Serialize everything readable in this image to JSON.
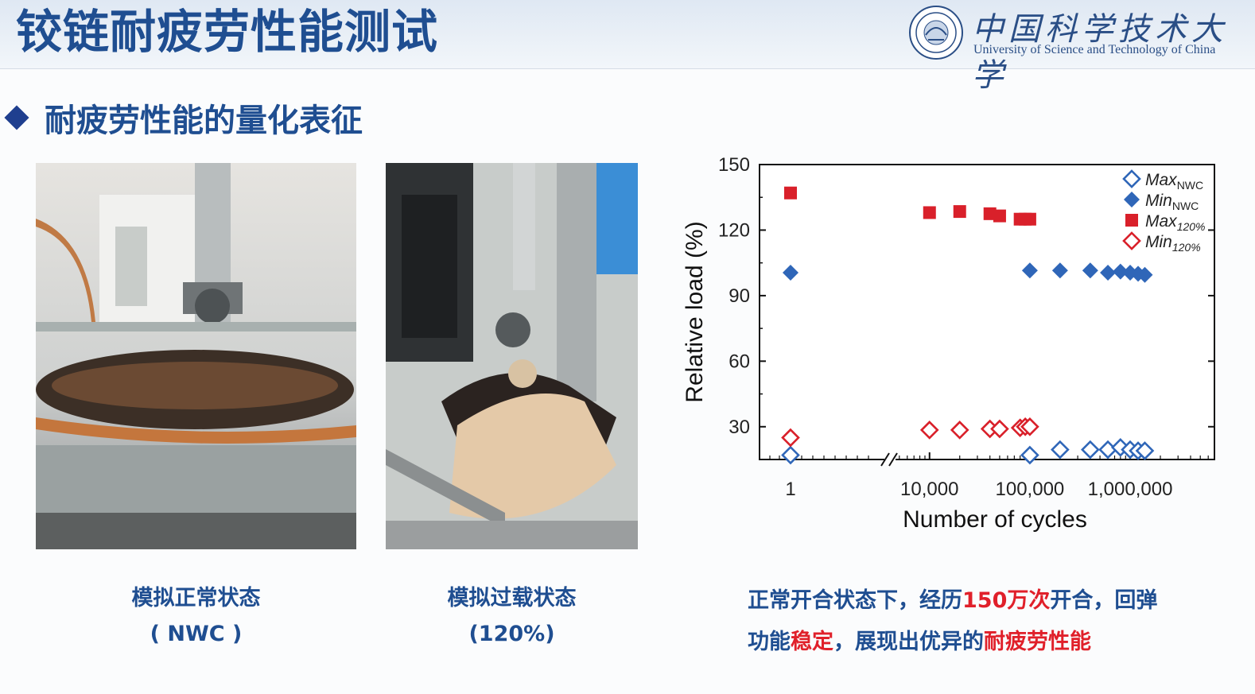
{
  "header": {
    "title": "铰链耐疲劳性能测试",
    "university_cn": "中国科学技术大学",
    "university_en": "University of Science and Technology of China"
  },
  "section": {
    "title": "耐疲劳性能的量化表征"
  },
  "photos": [
    {
      "caption_line1": "模拟正常状态",
      "caption_line2": "( NWC )"
    },
    {
      "caption_line1": "模拟过载状态",
      "caption_line2": "(120%)"
    }
  ],
  "description": {
    "p1": "正常开合状态下，经历",
    "hl1": "150万次",
    "p2": "开合，回弹",
    "p3": "功能",
    "hl2": "稳定",
    "p4": "，展现出优异的",
    "hl3": "耐疲劳性能"
  },
  "colors": {
    "accent_blue": "#1f4e91",
    "highlight_red": "#e0202a",
    "nwc_blue": "#2f66b8",
    "overload_red": "#d9202a"
  },
  "chart_data": {
    "type": "scatter",
    "xlabel": "Number of cycles",
    "ylabel": "Relative load (%)",
    "x_scale": "log-with-break",
    "ylim": [
      15,
      150
    ],
    "y_ticks": [
      30,
      60,
      90,
      120,
      150
    ],
    "x_ticks": [
      {
        "value": 1,
        "label": "1"
      },
      {
        "value": 10000,
        "label": "10,000"
      },
      {
        "value": 100000,
        "label": "100,000"
      },
      {
        "value": 1000000,
        "label": "1,000,000"
      }
    ],
    "legend_position": "top-right",
    "series": [
      {
        "name_main": "Max",
        "name_sub": "NWC",
        "marker": "diamond-open",
        "color": "#2f66b8",
        "x": [
          1,
          100000,
          200000,
          400000,
          600000,
          800000,
          1000000,
          1200000,
          1400000
        ],
        "y": [
          17,
          17,
          19.5,
          19.5,
          19.5,
          20.5,
          19.5,
          19,
          19
        ]
      },
      {
        "name_main": "Min",
        "name_sub": "NWC",
        "marker": "diamond-filled",
        "color": "#2f66b8",
        "x": [
          1,
          100000,
          200000,
          400000,
          600000,
          800000,
          1000000,
          1200000,
          1400000
        ],
        "y": [
          100.5,
          101.5,
          101.5,
          101.5,
          100.5,
          101,
          100.5,
          100,
          99.5
        ]
      },
      {
        "name_main": "Max",
        "name_sub": "120%",
        "marker": "square-filled",
        "color": "#d9202a",
        "x": [
          1,
          10000,
          20000,
          40000,
          50000,
          80000,
          90000,
          100000
        ],
        "y": [
          137,
          128,
          128.5,
          127.5,
          126.5,
          125,
          125,
          125
        ]
      },
      {
        "name_main": "Min",
        "name_sub": "120%",
        "marker": "diamond-open",
        "color": "#d9202a",
        "x": [
          1,
          10000,
          20000,
          40000,
          50000,
          80000,
          90000,
          100000
        ],
        "y": [
          25,
          28.5,
          28.5,
          29,
          29,
          29.5,
          30,
          30
        ]
      }
    ]
  }
}
